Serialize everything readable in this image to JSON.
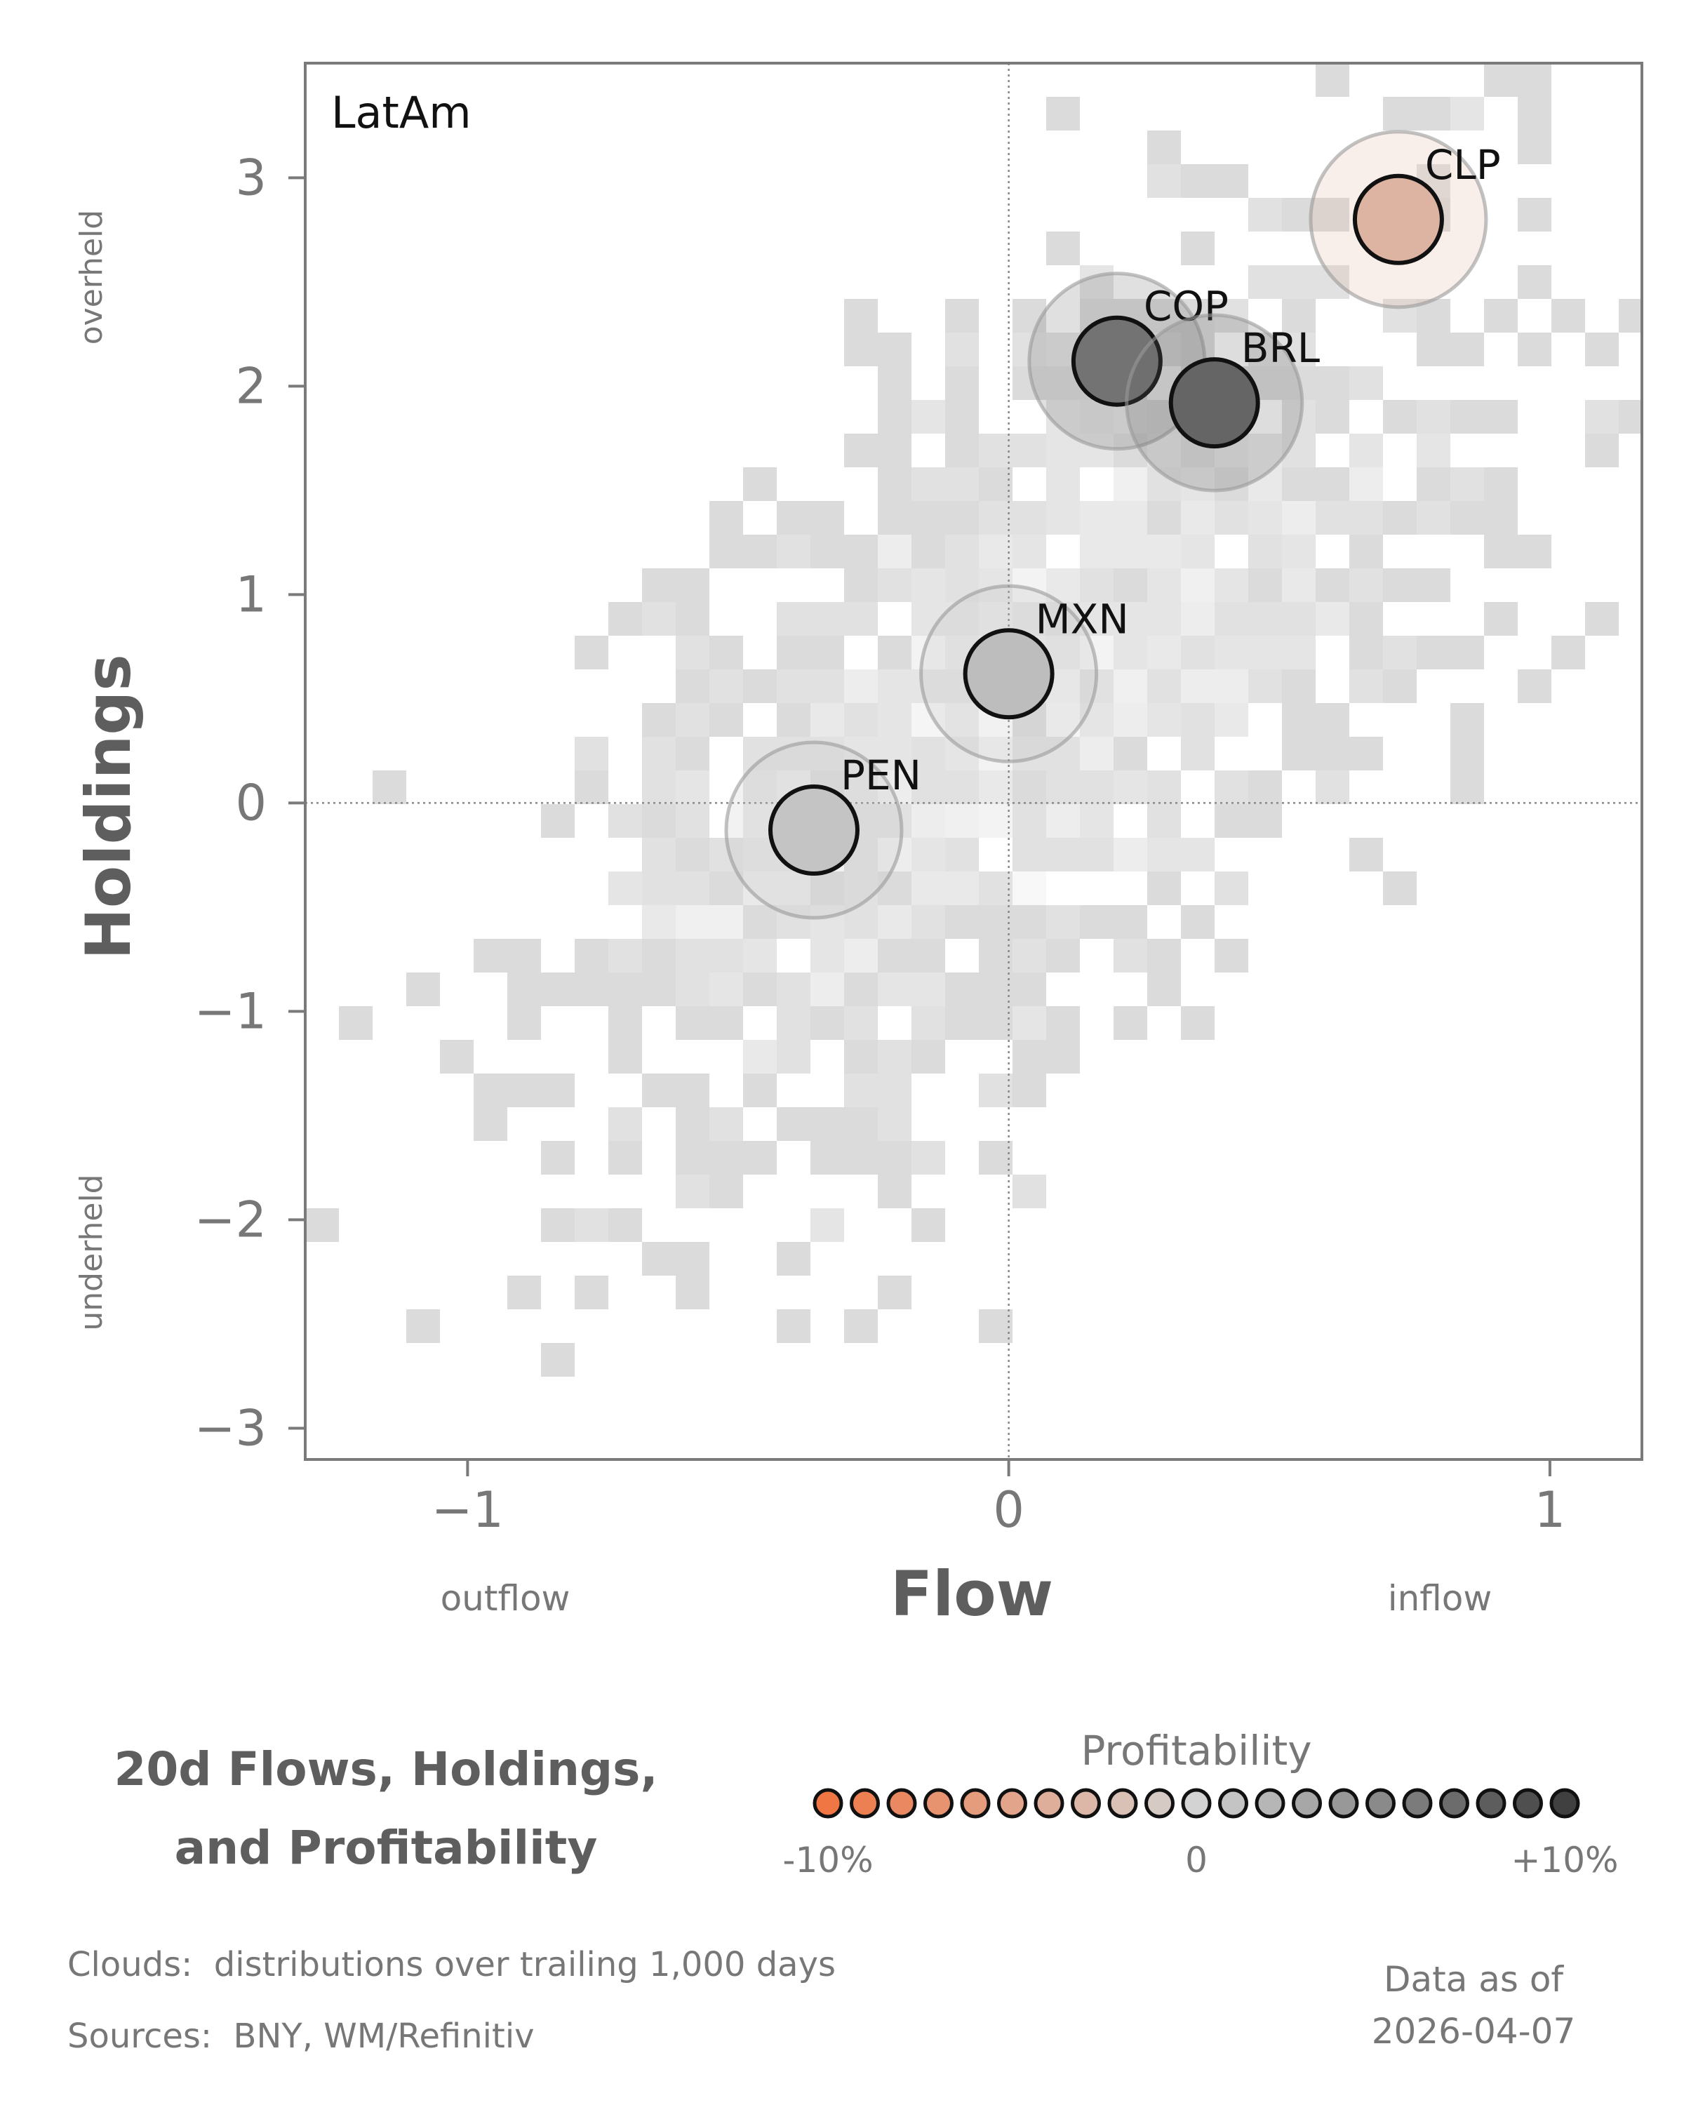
{
  "chart_data": {
    "type": "scatter",
    "panel_label": "LatAm",
    "xlabel": "Flow",
    "ylabel": "Holdings",
    "x_direction_labels": {
      "negative": "outflow",
      "positive": "inflow"
    },
    "y_direction_labels": {
      "negative": "underheld",
      "positive": "overheld"
    },
    "xlim": [
      -1.3,
      1.17
    ],
    "ylim": [
      -3.15,
      3.55
    ],
    "x_ticks": [
      "−1",
      "0",
      "1"
    ],
    "x_tick_values": [
      -1,
      0,
      1
    ],
    "y_ticks": [
      "−3",
      "−2",
      "−1",
      "0",
      "1",
      "2",
      "3"
    ],
    "y_tick_values": [
      -3,
      -2,
      -1,
      0,
      1,
      2,
      3
    ],
    "points": [
      {
        "label": "CLP",
        "flow": 0.72,
        "holdings": 2.8,
        "profitability": -3.5
      },
      {
        "label": "COP",
        "flow": 0.2,
        "holdings": 2.12,
        "profitability": 6.5
      },
      {
        "label": "BRL",
        "flow": 0.38,
        "holdings": 1.92,
        "profitability": 7.5
      },
      {
        "label": "MXN",
        "flow": 0.0,
        "holdings": 0.62,
        "profitability": 1.5
      },
      {
        "label": "PEN",
        "flow": -0.36,
        "holdings": -0.13,
        "profitability": 1.0
      }
    ],
    "cloud": {
      "center": [
        0.05,
        0.5
      ],
      "spread": [
        0.45,
        1.15
      ],
      "correlation": 0.62
    }
  },
  "title_lines": [
    "20d Flows, Holdings,",
    "and Profitability"
  ],
  "legend": {
    "title": "Profitability",
    "min_label": "-10%",
    "mid_label": "0",
    "max_label": "+10%",
    "steps": 21,
    "color_negative": "#f07744",
    "color_neutral": "#d3d3d3",
    "color_positive": "#404040"
  },
  "footer": {
    "clouds_note": "Clouds:  distributions over trailing 1,000 days",
    "sources_note": "Sources:  BNY, WM/Refinitiv",
    "asof_label": "Data as of",
    "asof_date": "2026-04-07"
  }
}
